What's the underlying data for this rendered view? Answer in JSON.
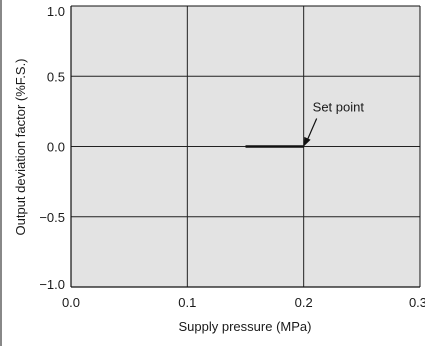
{
  "chart_data": {
    "type": "line",
    "title": "",
    "xlabel": "Supply pressure  (MPa)",
    "ylabel": "Output deviation factor  (%F.S.)",
    "xlim": [
      0.0,
      0.3
    ],
    "ylim": [
      -1.0,
      1.0
    ],
    "x_ticks": [
      "0.0",
      "0.1",
      "0.2",
      "0.3"
    ],
    "y_ticks": [
      "1.0",
      "0.5",
      "0.0",
      "−0.5",
      "−1.0"
    ],
    "grid": true,
    "plot_background": "#e3e3e3",
    "series": [
      {
        "x": [
          0.15,
          0.2
        ],
        "y": [
          0.0,
          0.0
        ]
      }
    ],
    "annotations": [
      {
        "text": "Set point",
        "points_to": {
          "x": 0.2,
          "y": 0.0
        }
      }
    ]
  }
}
